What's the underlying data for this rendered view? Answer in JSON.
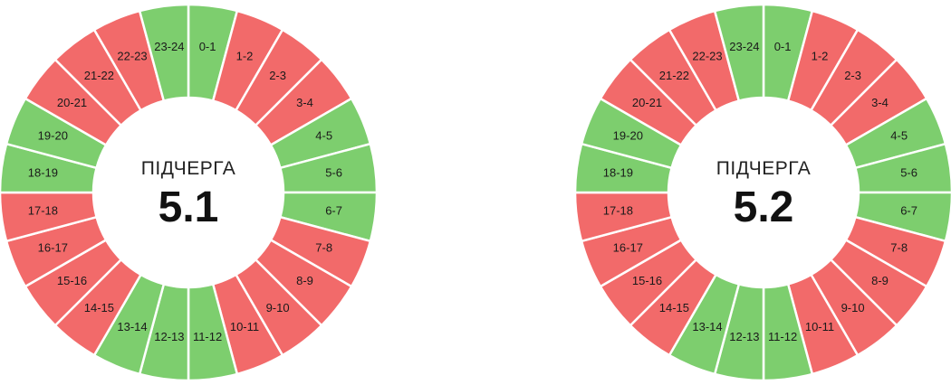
{
  "colors": {
    "on": "#7dce6e",
    "off": "#f26a6a"
  },
  "wheels": [
    {
      "label": "ПІДЧЕРГА",
      "number": "5.1",
      "hours": [
        "0-1",
        "1-2",
        "2-3",
        "3-4",
        "4-5",
        "5-6",
        "6-7",
        "7-8",
        "8-9",
        "9-10",
        "10-11",
        "11-12",
        "12-13",
        "13-14",
        "14-15",
        "15-16",
        "16-17",
        "17-18",
        "18-19",
        "19-20",
        "20-21",
        "21-22",
        "22-23",
        "23-24"
      ],
      "states": [
        "on",
        "off",
        "off",
        "off",
        "on",
        "on",
        "on",
        "off",
        "off",
        "off",
        "off",
        "on",
        "on",
        "on",
        "off",
        "off",
        "off",
        "off",
        "on",
        "on",
        "off",
        "off",
        "off",
        "on"
      ]
    },
    {
      "label": "ПІДЧЕРГА",
      "number": "5.2",
      "hours": [
        "0-1",
        "1-2",
        "2-3",
        "3-4",
        "4-5",
        "5-6",
        "6-7",
        "7-8",
        "8-9",
        "9-10",
        "10-11",
        "11-12",
        "12-13",
        "13-14",
        "14-15",
        "15-16",
        "16-17",
        "17-18",
        "18-19",
        "19-20",
        "20-21",
        "21-22",
        "22-23",
        "23-24"
      ],
      "states": [
        "on",
        "off",
        "off",
        "off",
        "on",
        "on",
        "on",
        "off",
        "off",
        "off",
        "off",
        "on",
        "on",
        "on",
        "off",
        "off",
        "off",
        "off",
        "on",
        "on",
        "off",
        "off",
        "off",
        "on"
      ]
    }
  ]
}
